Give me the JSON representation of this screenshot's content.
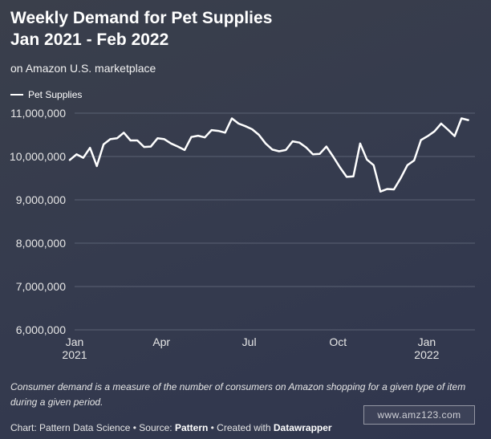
{
  "title_line1": "Weekly Demand for Pet Supplies",
  "title_line2": "Jan 2021 - Feb 2022",
  "subtitle": "on Amazon U.S. marketplace",
  "note": "Consumer demand is a measure of the number of consumers on Amazon shopping for a given type of item during a given period.",
  "credit": {
    "prefix": "Chart: Pattern Data Science • Source: ",
    "source": "Pattern",
    "middle": " • Created with ",
    "tool": "Datawrapper"
  },
  "watermark": "www.amz123.com",
  "colors": {
    "line": "#ffffff",
    "grid": "#5b6274",
    "text": "#e6e6e6"
  },
  "chart_data": {
    "type": "line",
    "title": "Weekly Demand for Pet Supplies",
    "subtitle": "on Amazon U.S. marketplace",
    "xlabel": "",
    "ylabel": "",
    "ylim": [
      6000000,
      11000000
    ],
    "xlim": [
      "2021-01-01",
      "2022-02-20"
    ],
    "grid": true,
    "legend": "top-left",
    "yticks": [
      {
        "value": 6000000,
        "label": "6,000,000"
      },
      {
        "value": 7000000,
        "label": "7,000,000"
      },
      {
        "value": 8000000,
        "label": "8,000,000"
      },
      {
        "value": 9000000,
        "label": "9,000,000"
      },
      {
        "value": 10000000,
        "label": "10,000,000"
      },
      {
        "value": 11000000,
        "label": "11,000,000"
      }
    ],
    "xticks": [
      {
        "date": "2021-01-01",
        "label": "Jan",
        "sublabel": "2021"
      },
      {
        "date": "2021-04-01",
        "label": "Apr",
        "sublabel": ""
      },
      {
        "date": "2021-07-01",
        "label": "Jul",
        "sublabel": ""
      },
      {
        "date": "2021-10-01",
        "label": "Oct",
        "sublabel": ""
      },
      {
        "date": "2022-01-01",
        "label": "Jan",
        "sublabel": "2022"
      }
    ],
    "series": [
      {
        "name": "Pet Supplies",
        "points": [
          {
            "x": "2020-12-27",
            "y": 9920000
          },
          {
            "x": "2021-01-03",
            "y": 10050000
          },
          {
            "x": "2021-01-10",
            "y": 9970000
          },
          {
            "x": "2021-01-17",
            "y": 10200000
          },
          {
            "x": "2021-01-24",
            "y": 9780000
          },
          {
            "x": "2021-01-31",
            "y": 10280000
          },
          {
            "x": "2021-02-07",
            "y": 10400000
          },
          {
            "x": "2021-02-14",
            "y": 10420000
          },
          {
            "x": "2021-02-21",
            "y": 10550000
          },
          {
            "x": "2021-02-28",
            "y": 10370000
          },
          {
            "x": "2021-03-07",
            "y": 10370000
          },
          {
            "x": "2021-03-14",
            "y": 10220000
          },
          {
            "x": "2021-03-21",
            "y": 10230000
          },
          {
            "x": "2021-03-28",
            "y": 10420000
          },
          {
            "x": "2021-04-04",
            "y": 10400000
          },
          {
            "x": "2021-04-11",
            "y": 10300000
          },
          {
            "x": "2021-04-18",
            "y": 10230000
          },
          {
            "x": "2021-04-25",
            "y": 10150000
          },
          {
            "x": "2021-05-02",
            "y": 10450000
          },
          {
            "x": "2021-05-09",
            "y": 10480000
          },
          {
            "x": "2021-05-16",
            "y": 10440000
          },
          {
            "x": "2021-05-23",
            "y": 10610000
          },
          {
            "x": "2021-05-30",
            "y": 10590000
          },
          {
            "x": "2021-06-06",
            "y": 10550000
          },
          {
            "x": "2021-06-13",
            "y": 10880000
          },
          {
            "x": "2021-06-20",
            "y": 10760000
          },
          {
            "x": "2021-06-27",
            "y": 10700000
          },
          {
            "x": "2021-07-04",
            "y": 10630000
          },
          {
            "x": "2021-07-11",
            "y": 10500000
          },
          {
            "x": "2021-07-18",
            "y": 10300000
          },
          {
            "x": "2021-07-25",
            "y": 10160000
          },
          {
            "x": "2021-08-01",
            "y": 10120000
          },
          {
            "x": "2021-08-08",
            "y": 10150000
          },
          {
            "x": "2021-08-15",
            "y": 10350000
          },
          {
            "x": "2021-08-22",
            "y": 10320000
          },
          {
            "x": "2021-08-29",
            "y": 10210000
          },
          {
            "x": "2021-09-05",
            "y": 10050000
          },
          {
            "x": "2021-09-12",
            "y": 10060000
          },
          {
            "x": "2021-09-19",
            "y": 10230000
          },
          {
            "x": "2021-09-26",
            "y": 10000000
          },
          {
            "x": "2021-10-03",
            "y": 9750000
          },
          {
            "x": "2021-10-10",
            "y": 9530000
          },
          {
            "x": "2021-10-17",
            "y": 9540000
          },
          {
            "x": "2021-10-24",
            "y": 10300000
          },
          {
            "x": "2021-10-31",
            "y": 9930000
          },
          {
            "x": "2021-11-07",
            "y": 9800000
          },
          {
            "x": "2021-11-14",
            "y": 9190000
          },
          {
            "x": "2021-11-21",
            "y": 9250000
          },
          {
            "x": "2021-11-28",
            "y": 9240000
          },
          {
            "x": "2021-12-05",
            "y": 9500000
          },
          {
            "x": "2021-12-12",
            "y": 9800000
          },
          {
            "x": "2021-12-19",
            "y": 9910000
          },
          {
            "x": "2021-12-26",
            "y": 10380000
          },
          {
            "x": "2022-01-02",
            "y": 10470000
          },
          {
            "x": "2022-01-09",
            "y": 10580000
          },
          {
            "x": "2022-01-16",
            "y": 10760000
          },
          {
            "x": "2022-01-23",
            "y": 10620000
          },
          {
            "x": "2022-01-30",
            "y": 10470000
          },
          {
            "x": "2022-02-06",
            "y": 10880000
          },
          {
            "x": "2022-02-13",
            "y": 10840000
          }
        ]
      }
    ]
  }
}
